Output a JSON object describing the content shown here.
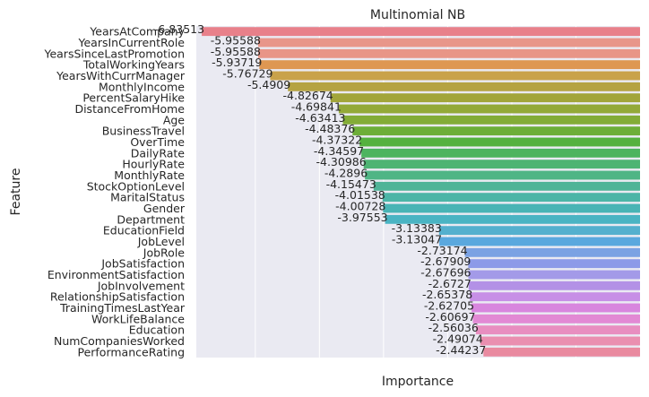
{
  "chart_data": {
    "type": "bar",
    "orientation": "horizontal",
    "title": "Multinomial NB",
    "xlabel": "Importance",
    "ylabel": "Feature",
    "xlim": [
      -6.92,
      0
    ],
    "grid": true,
    "categories": [
      "YearsAtCompany",
      "YearsInCurrentRole",
      "YearsSinceLastPromotion",
      "TotalWorkingYears",
      "YearsWithCurrManager",
      "MonthlyIncome",
      "PercentSalaryHike",
      "DistanceFromHome",
      "Age",
      "BusinessTravel",
      "OverTime",
      "DailyRate",
      "HourlyRate",
      "MonthlyRate",
      "StockOptionLevel",
      "MaritalStatus",
      "Gender",
      "Department",
      "EducationField",
      "JobLevel",
      "JobRole",
      "JobSatisfaction",
      "EnvironmentSatisfaction",
      "JobInvolvement",
      "RelationshipSatisfaction",
      "TrainingTimesLastYear",
      "WorkLifeBalance",
      "Education",
      "NumCompaniesWorked",
      "PerformanceRating"
    ],
    "values": [
      -6.83513,
      -5.95588,
      -5.95588,
      -5.93719,
      -5.76729,
      -5.4909,
      -4.82674,
      -4.69841,
      -4.63413,
      -4.48376,
      -4.37322,
      -4.34597,
      -4.30986,
      -4.2896,
      -4.15473,
      -4.01538,
      -4.00728,
      -3.97553,
      -3.13383,
      -3.13047,
      -2.73174,
      -2.67909,
      -2.67696,
      -2.6727,
      -2.65378,
      -2.62705,
      -2.60697,
      -2.56036,
      -2.49074,
      -2.44237
    ],
    "value_labels": [
      "-6.83513",
      "-5.95588",
      "-5.95588",
      "-5.93719",
      "-5.76729",
      "-5.4909",
      "-4.82674",
      "-4.69841",
      "-4.63413",
      "-4.48376",
      "-4.37322",
      "-4.34597",
      "-4.30986",
      "-4.2896",
      "-4.15473",
      "-4.01538",
      "-4.00728",
      "-3.97553",
      "-3.13383",
      "-3.13047",
      "-2.73174",
      "-2.67909",
      "-2.67696",
      "-2.6727",
      "-2.65378",
      "-2.62705",
      "-2.60697",
      "-2.56036",
      "-2.49074",
      "-2.44237"
    ],
    "colors": [
      "#e8808a",
      "#e8968a",
      "#e89587",
      "#de9752",
      "#c9a24a",
      "#b5a342",
      "#a2a53a",
      "#93a938",
      "#83ac37",
      "#6dae38",
      "#55b13f",
      "#4db45f",
      "#4eb473",
      "#4fb585",
      "#4fb497",
      "#4cb5a7",
      "#49b4b5",
      "#4ab4c3",
      "#54b0ce",
      "#5aa8de",
      "#7ba2e3",
      "#8c9ae8",
      "#a39ae8",
      "#b391e6",
      "#c78fe6",
      "#d886de",
      "#e289d4",
      "#e88ec0",
      "#ea8fb0",
      "#e98aa0"
    ]
  }
}
